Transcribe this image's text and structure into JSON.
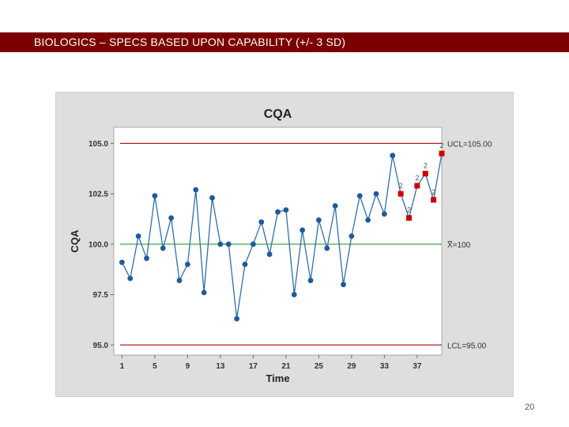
{
  "slide": {
    "title": "BIOLOGICS – SPECS BASED UPON CAPABILITY (+/- 3 SD)",
    "page_number": "20"
  },
  "colors": {
    "title_bar": "#7a0000",
    "series": "#2f6fa8",
    "point": "#1f5a99",
    "flagged_point": "#cc0000",
    "limit_line": "#b0201a",
    "center_line": "#2e9a2e"
  },
  "chart_data": {
    "type": "line",
    "title": "CQA",
    "xlabel": "Time",
    "ylabel": "CQA",
    "xlim": [
      0,
      40
    ],
    "ylim": [
      94.5,
      105.8
    ],
    "x_ticks": [
      1,
      5,
      9,
      13,
      17,
      21,
      25,
      29,
      33,
      37
    ],
    "y_ticks": [
      95.0,
      97.5,
      100.0,
      102.5,
      105.0
    ],
    "y_tick_labels": [
      "95.0",
      "97.5",
      "100.0",
      "102.5",
      "105.0"
    ],
    "x": [
      1,
      2,
      3,
      4,
      5,
      6,
      7,
      8,
      9,
      10,
      11,
      12,
      13,
      14,
      15,
      16,
      17,
      18,
      19,
      20,
      21,
      22,
      23,
      24,
      25,
      26,
      27,
      28,
      29,
      30,
      31,
      32,
      33,
      34,
      35,
      36,
      37,
      38,
      39,
      40
    ],
    "values": [
      99.1,
      98.3,
      100.4,
      99.3,
      102.4,
      99.8,
      101.3,
      98.2,
      99.0,
      102.7,
      97.6,
      102.3,
      100.0,
      100.0,
      96.3,
      99.0,
      100.0,
      101.1,
      99.5,
      101.6,
      101.7,
      97.5,
      100.7,
      98.2,
      101.2,
      99.8,
      101.9,
      98.0,
      100.4,
      102.4,
      101.2,
      102.5,
      101.5,
      104.4,
      102.5,
      101.3,
      102.9,
      103.5,
      102.2,
      104.5
    ],
    "flagged_indices": [
      34,
      35,
      36,
      37,
      38,
      39
    ],
    "flag_label": "2",
    "reference_lines": [
      {
        "name": "UCL",
        "value": 105.0,
        "label": "UCL=105.00"
      },
      {
        "name": "center",
        "value": 100.0,
        "label": "X=100",
        "label_prefix": "X",
        "label_suffix": "=100"
      },
      {
        "name": "LCL",
        "value": 95.0,
        "label": "LCL=95.00"
      }
    ],
    "grid": false
  }
}
